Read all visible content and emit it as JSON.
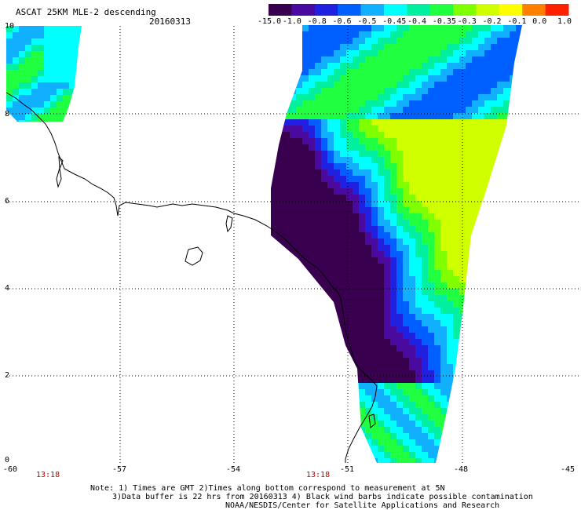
{
  "header": {
    "title": "ASCAT 25KM MLE-2 descending",
    "date": "20160313"
  },
  "colorbar": {
    "labels": [
      "-15.0",
      "-1.0",
      "-0.8",
      "-0.6",
      "-0.5",
      "-0.45",
      "-0.4",
      "-0.35",
      "-0.3",
      "-0.2",
      "-0.1",
      "0.0",
      "1.0"
    ],
    "colors": [
      "#3a0050",
      "#4a0aa0",
      "#2020e0",
      "#0060ff",
      "#10b0ff",
      "#00ffff",
      "#00f0a0",
      "#20ff40",
      "#80ff00",
      "#d0ff00",
      "#ffff00",
      "#ff8000",
      "#ff2000"
    ]
  },
  "axes": {
    "lat_labels": [
      "10",
      "8",
      "6",
      "4",
      "2",
      "0"
    ],
    "lon_labels": [
      "-60",
      "-57",
      "-54",
      "-51",
      "-48",
      "-45"
    ],
    "time_labels": [
      "13:18",
      "13:18"
    ]
  },
  "notes": {
    "line1": "Note: 1) Times are GMT 2)Times along bottom correspond to measurement at 5N",
    "line2": "3)Data buffer is 22 hrs from 20160313 4) Black wind barbs indicate possible contamination",
    "line3": "NOAA/NESDIS/Center for Satellite Applications and Research"
  }
}
